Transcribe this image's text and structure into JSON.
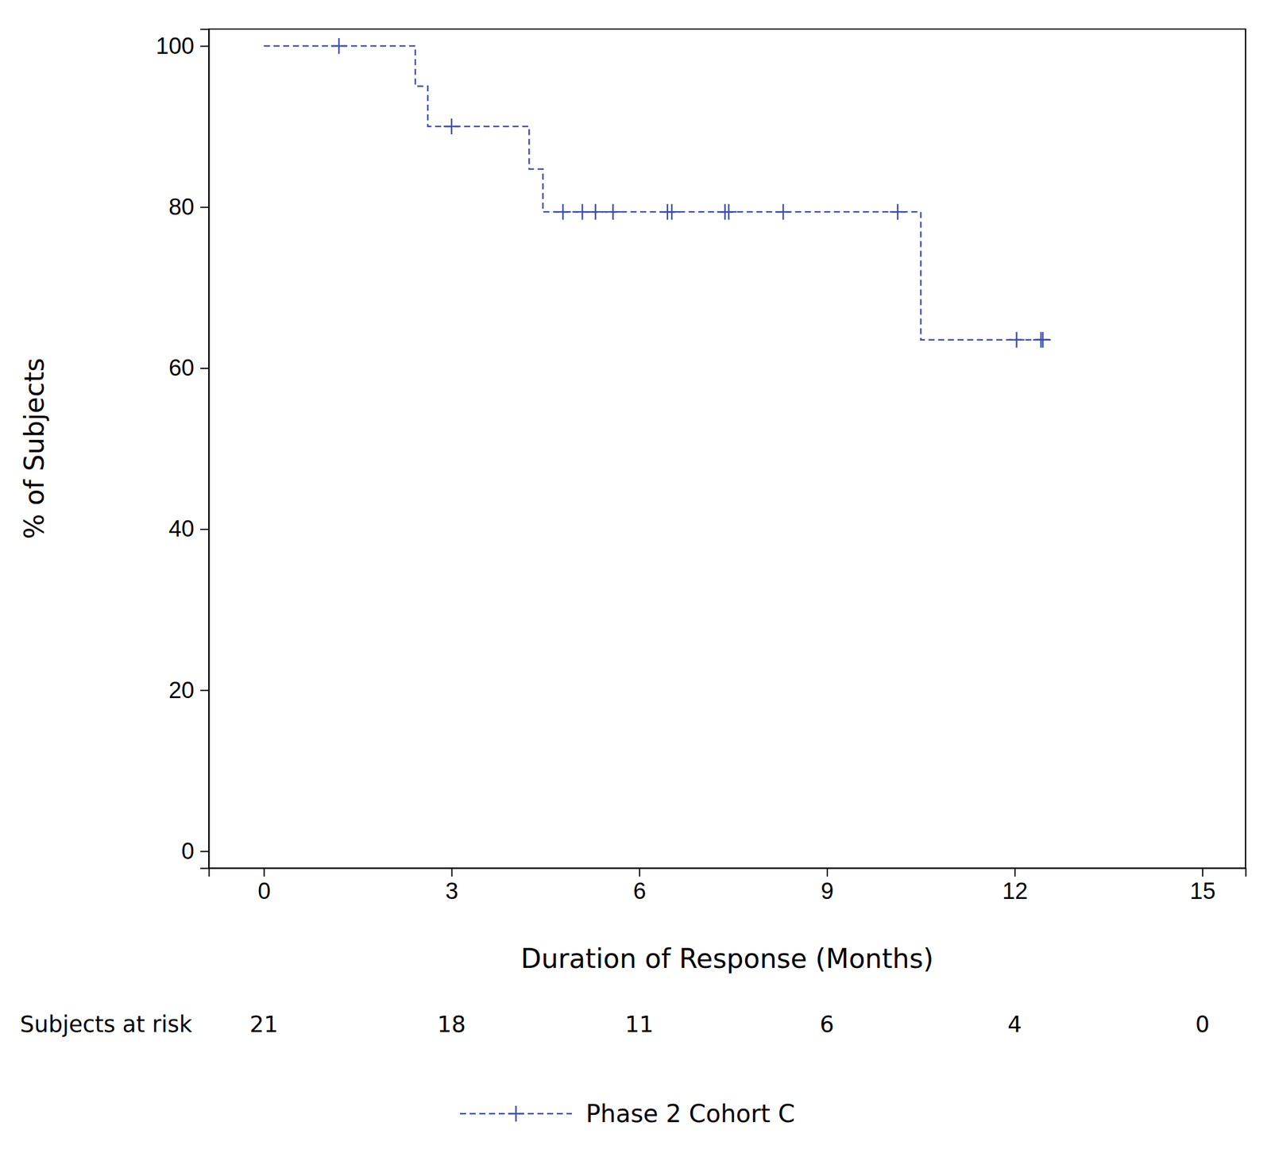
{
  "chart_data": {
    "type": "line",
    "x_label": "Duration of Response (Months)",
    "y_label": "% of Subjects",
    "xlim": [
      -0.88,
      15.69
    ],
    "xticks": [
      0,
      3,
      6,
      9,
      12,
      15
    ],
    "ylim": [
      -2.1,
      102.1
    ],
    "yticks": [
      0,
      20,
      40,
      60,
      80,
      100
    ],
    "legend": "bottom",
    "series": [
      {
        "name": "Phase 2 Cohort C",
        "color": "#3f4fa8",
        "line_style": "dashed",
        "marker": "plus",
        "x": [
          0,
          2.42,
          2.62,
          4.24,
          4.46,
          10.5,
          12.56
        ],
        "values": [
          100,
          95.0,
          90.0,
          84.7,
          79.4,
          63.5,
          63.5
        ],
        "censored": {
          "x": [
            1.2,
            3.0,
            4.78,
            5.09,
            5.3,
            5.58,
            6.45,
            6.52,
            7.37,
            7.43,
            8.3,
            10.13,
            12.03,
            12.42,
            12.45
          ],
          "values": [
            100,
            90.0,
            79.4,
            79.4,
            79.4,
            79.4,
            79.4,
            79.4,
            79.4,
            79.4,
            79.4,
            79.4,
            63.5,
            63.5,
            63.5
          ]
        }
      }
    ],
    "risk_table": {
      "label": "Subjects at risk",
      "x": [
        0,
        3,
        6,
        9,
        12,
        15
      ],
      "values": [
        21,
        18,
        11,
        6,
        4,
        0
      ]
    }
  }
}
